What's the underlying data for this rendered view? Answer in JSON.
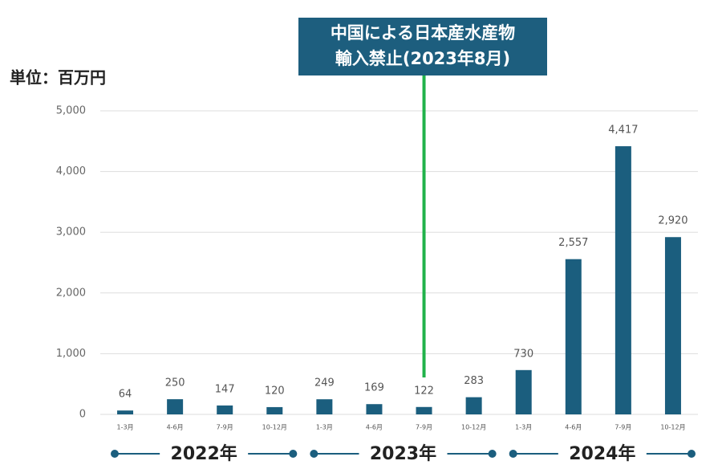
{
  "chart_data": {
    "type": "bar",
    "unit_label": "単位：百万円",
    "annotation": [
      "中国による日本産水産物",
      "輸入禁止(2023年8月)"
    ],
    "categories": [
      "1-3月",
      "4-6月",
      "7-9月",
      "10-12月",
      "1-3月",
      "4-6月",
      "7-9月",
      "10-12月",
      "1-3月",
      "4-6月",
      "7-9月",
      "10-12月"
    ],
    "group_labels": [
      "2022年",
      "2023年",
      "2024年"
    ],
    "values": [
      64,
      250,
      147,
      120,
      249,
      169,
      122,
      283,
      730,
      2557,
      4417,
      2920
    ],
    "value_labels": [
      "64",
      "250",
      "147",
      "120",
      "249",
      "169",
      "122",
      "283",
      "730",
      "2,557",
      "4,417",
      "2,920"
    ],
    "color": "#1b5e7e",
    "ylim": [
      0,
      5000
    ],
    "yticks": [
      0,
      {
        "value": 1000,
        "label": "1,000"
      },
      {
        "value": 2000,
        "label": "2,000"
      },
      {
        "value": 3000,
        "label": "3,000"
      },
      {
        "value": 4000,
        "label": "4,000"
      },
      {
        "value": 5000,
        "label": "5,000"
      }
    ],
    "grid": true
  }
}
